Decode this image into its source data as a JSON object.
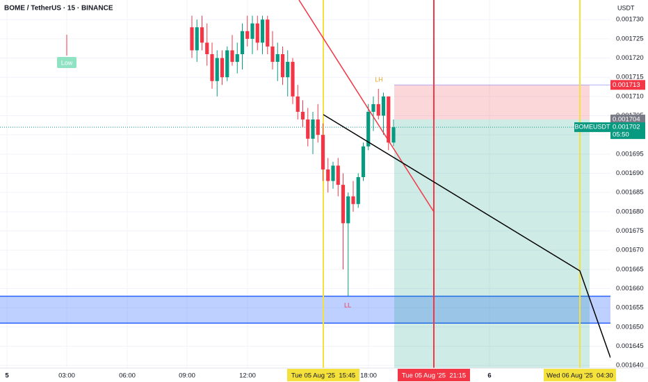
{
  "chart_data": {
    "type": "candlestick",
    "title": "BOME / TetherUS · 15 · BINANCE",
    "y_axis_label": "USDT",
    "x": [
      "09:15",
      "09:30",
      "09:45",
      "10:00",
      "10:15",
      "10:30",
      "10:45",
      "11:00",
      "11:15",
      "11:30",
      "11:45",
      "12:00",
      "12:15",
      "12:30",
      "12:45",
      "13:00",
      "13:15",
      "13:30",
      "13:45",
      "14:00",
      "14:15",
      "14:30",
      "14:45",
      "15:00",
      "15:15",
      "15:30",
      "15:45",
      "16:00",
      "16:15",
      "16:30",
      "16:45",
      "17:00",
      "17:15",
      "17:30",
      "17:45",
      "18:00",
      "18:15",
      "18:30",
      "18:45",
      "19:00",
      "19:15"
    ],
    "open": [
      0.001728,
      0.001722,
      0.001728,
      0.001724,
      0.001721,
      0.001714,
      0.00172,
      0.001715,
      0.001722,
      0.001719,
      0.001721,
      0.001727,
      0.001725,
      0.001729,
      0.001724,
      0.00173,
      0.001723,
      0.001719,
      0.001721,
      0.001715,
      0.001719,
      0.00171,
      0.001706,
      0.001704,
      0.001699,
      0.001704,
      0.0017,
      0.001691,
      0.001688,
      0.001692,
      0.001687,
      0.001677,
      0.001684,
      0.001682,
      0.001689,
      0.001697,
      0.001706,
      0.001708,
      0.001705,
      0.00171,
      0.001698
    ],
    "high": [
      0.001731,
      0.00173,
      0.001731,
      0.001729,
      0.001724,
      0.001722,
      0.001722,
      0.001723,
      0.001726,
      0.001724,
      0.001729,
      0.001731,
      0.001731,
      0.001731,
      0.001731,
      0.001731,
      0.001727,
      0.001724,
      0.001723,
      0.001722,
      0.00172,
      0.001713,
      0.001709,
      0.001707,
      0.001706,
      0.001708,
      0.001703,
      0.001694,
      0.001693,
      0.001694,
      0.00169,
      0.001685,
      0.001688,
      0.00169,
      0.001698,
      0.001708,
      0.00171,
      0.001712,
      0.001711,
      0.00171,
      0.001704
    ],
    "low": [
      0.00172,
      0.001719,
      0.001722,
      0.001718,
      0.001712,
      0.00171,
      0.001713,
      0.001714,
      0.001718,
      0.001716,
      0.001717,
      0.001723,
      0.001721,
      0.001722,
      0.001721,
      0.001721,
      0.001717,
      0.001714,
      0.001713,
      0.00171,
      0.001708,
      0.001704,
      0.001702,
      0.001697,
      0.001695,
      0.001698,
      0.001688,
      0.001685,
      0.001686,
      0.001684,
      0.001665,
      0.001658,
      0.00168,
      0.001681,
      0.001688,
      0.001696,
      0.001701,
      0.001704,
      0.0017,
      0.001696,
      0.001697
    ],
    "close": [
      0.001722,
      0.001728,
      0.001724,
      0.001721,
      0.001714,
      0.00172,
      0.001715,
      0.001722,
      0.001719,
      0.001721,
      0.001727,
      0.001725,
      0.001729,
      0.001724,
      0.00173,
      0.001723,
      0.001719,
      0.001721,
      0.001715,
      0.001719,
      0.00171,
      0.001706,
      0.001704,
      0.001699,
      0.001704,
      0.0017,
      0.001691,
      0.001688,
      0.001692,
      0.001687,
      0.001677,
      0.001684,
      0.001682,
      0.001689,
      0.001697,
      0.001706,
      0.001708,
      0.001705,
      0.00171,
      0.001698,
      0.001702
    ],
    "up_color": "#089981",
    "down_color": "#f23645",
    "ylim": [
      0.0016393,
      0.0017351
    ],
    "yticks": [
      {
        "value": 0.00164,
        "label": "0.001640"
      },
      {
        "value": 0.001645,
        "label": "0.001645"
      },
      {
        "value": 0.00165,
        "label": "0.001650"
      },
      {
        "value": 0.001655,
        "label": "0.001655"
      },
      {
        "value": 0.00166,
        "label": "0.001660"
      },
      {
        "value": 0.001665,
        "label": "0.001665"
      },
      {
        "value": 0.00167,
        "label": "0.001670"
      },
      {
        "value": 0.001675,
        "label": "0.001675"
      },
      {
        "value": 0.00168,
        "label": "0.001680"
      },
      {
        "value": 0.001685,
        "label": "0.001685"
      },
      {
        "value": 0.00169,
        "label": "0.001690"
      },
      {
        "value": 0.001695,
        "label": "0.001695"
      },
      {
        "value": 0.0017,
        "label": "0.001700"
      },
      {
        "value": 0.001705,
        "label": "0.001705"
      },
      {
        "value": 0.00171,
        "label": "0.001710"
      },
      {
        "value": 0.001715,
        "label": "0.001715"
      },
      {
        "value": 0.00172,
        "label": "0.001720"
      },
      {
        "value": 0.001725,
        "label": "0.001725"
      },
      {
        "value": 0.00173,
        "label": "0.001730"
      }
    ],
    "time_labels": [
      "5",
      "03:00",
      "06:00",
      "09:00",
      "12:00",
      "18:00",
      "6"
    ],
    "time_markers": [
      "Tue 05 Aug '25  15:45",
      "Tue 05 Aug '25  21:15",
      "Wed 06 Aug '25  04:30"
    ],
    "stop_price": {
      "value": 0.001713,
      "label": "0.001713"
    },
    "entry_price": {
      "value": 0.001704,
      "label": "0.001704"
    },
    "last_price": {
      "value": 0.001702,
      "label": "0.001702"
    },
    "symbol": "BOMEUSDT",
    "countdown": "05:50",
    "zone_top": 0.001658,
    "zone_bottom": 0.001651,
    "annotations": [
      "LH",
      "LL",
      "Low"
    ]
  }
}
